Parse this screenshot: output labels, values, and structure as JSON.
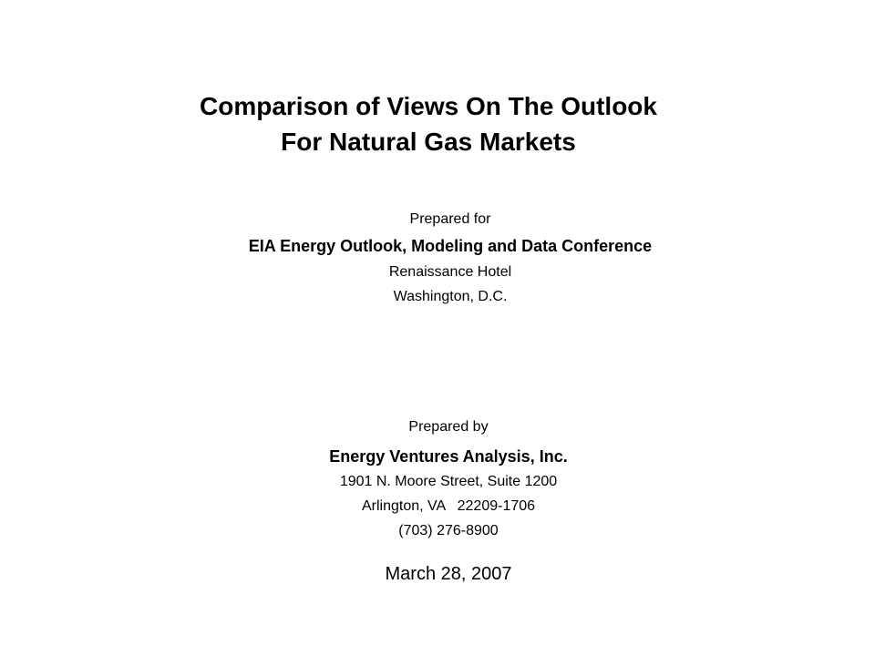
{
  "title": {
    "line1": "Comparison of Views On The Outlook",
    "line2": "For Natural Gas Markets"
  },
  "prepared_for": {
    "label": "Prepared for",
    "event": "EIA Energy Outlook, Modeling and Data Conference",
    "venue": "Renaissance Hotel",
    "city": "Washington, D.C."
  },
  "prepared_by": {
    "label": "Prepared by",
    "company": "Energy Ventures Analysis, Inc.",
    "street": "1901 N. Moore Street, Suite 1200",
    "city_state_zip": "Arlington, VA   22209-1706",
    "phone": "(703) 276-8900"
  },
  "date": "March 28, 2007"
}
